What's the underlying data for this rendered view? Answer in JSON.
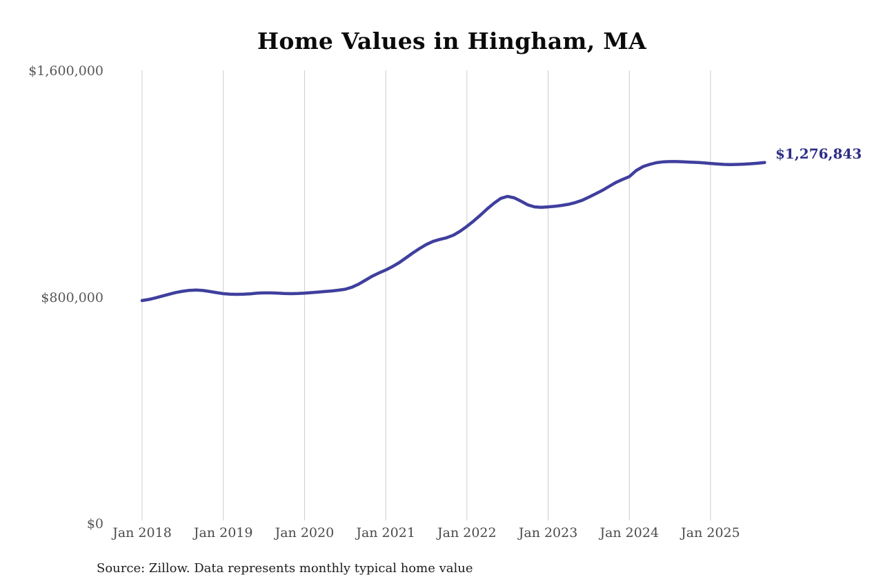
{
  "source_note": "Source: Zillow. Data represents monthly typical home value",
  "chart_data": {
    "type": "line",
    "title": "Home Values in Hingham, MA",
    "series_name": "Monthly typical home value",
    "x_range": {
      "start": "Jan 2018",
      "end": "Sep 2025",
      "step": "monthly"
    },
    "values": [
      789000,
      793000,
      798500,
      805000,
      811500,
      817500,
      822000,
      825000,
      826000,
      824500,
      821000,
      817000,
      813500,
      811500,
      811000,
      811500,
      813000,
      815000,
      816000,
      816000,
      815000,
      814000,
      813500,
      814000,
      815000,
      817000,
      819000,
      821000,
      823000,
      825500,
      829000,
      836000,
      847000,
      861000,
      875000,
      886500,
      897000,
      909000,
      923000,
      940000,
      957000,
      973000,
      987000,
      998000,
      1005000,
      1011000,
      1020000,
      1034000,
      1051000,
      1070000,
      1091000,
      1113000,
      1133000,
      1150000,
      1157000,
      1152000,
      1140000,
      1127000,
      1120000,
      1118500,
      1120000,
      1122000,
      1125000,
      1129000,
      1135000,
      1143000,
      1154000,
      1166000,
      1178000,
      1192000,
      1206000,
      1217000,
      1227000,
      1248000,
      1262000,
      1270000,
      1276000,
      1279000,
      1280000,
      1280000,
      1279000,
      1278000,
      1277000,
      1275500,
      1273500,
      1271500,
      1270000,
      1269500,
      1270000,
      1271000,
      1272500,
      1274500,
      1276843
    ],
    "last_value": 1276843,
    "end_point_label": "$1,276,843",
    "x_tick_labels": [
      "Jan 2018",
      "Jan 2019",
      "Jan 2020",
      "Jan 2021",
      "Jan 2022",
      "Jan 2023",
      "Jan 2024",
      "Jan 2025"
    ],
    "y_tick_labels": [
      "$0",
      "$800,000",
      "$1,600,000"
    ],
    "y_tick_values": [
      0,
      800000,
      1600000
    ],
    "ylim": [
      0,
      1600000
    ],
    "grid": "vertical-only",
    "legend": "none",
    "colors": {
      "line": "#3f3f9e",
      "end_label": "#2d2d86",
      "grid": "#cccccc",
      "x_axis_text": "#4a4a4a",
      "y_axis_text": "#565656",
      "title": "#0a0a0a",
      "source": "#1d1d1d",
      "background": "#ffffff"
    }
  }
}
